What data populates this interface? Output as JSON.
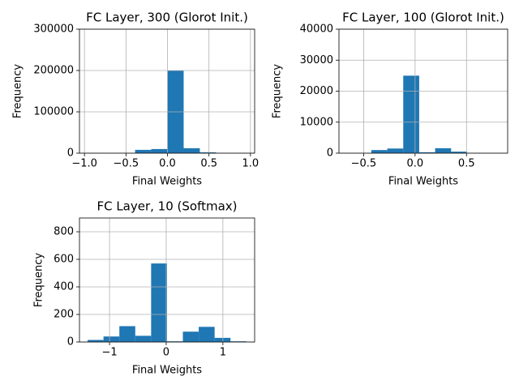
{
  "chart_data": [
    {
      "type": "histogram",
      "title": "FC Layer, 300 (Glorot Init.)",
      "xlabel": "Final Weights",
      "ylabel": "Frequency",
      "bins": [
        -0.975,
        -0.78,
        -0.585,
        -0.39,
        -0.195,
        0,
        0.195,
        0.39,
        0.585,
        0.78,
        0.975
      ],
      "values": [
        50,
        100,
        300,
        8000,
        10000,
        200000,
        12000,
        2000,
        100,
        50
      ],
      "color": "#1f77b4",
      "grid": true,
      "xlim": [
        -1.06,
        1.05
      ],
      "xticks": [
        {
          "value": -1,
          "label": "−1.0"
        },
        {
          "value": -0.5,
          "label": "−0.5"
        },
        {
          "value": 0,
          "label": "0.0"
        },
        {
          "value": 0.5,
          "label": "0.5"
        },
        {
          "value": 1,
          "label": "1.0"
        }
      ],
      "ylim": [
        0,
        300000
      ],
      "yticks": [
        0,
        100000,
        200000,
        300000
      ]
    },
    {
      "type": "histogram",
      "title": "FC Layer, 100 (Glorot Init.)",
      "xlabel": "Final Weights",
      "ylabel": "Frequency",
      "bins": [
        -0.735,
        -0.58,
        -0.425,
        -0.27,
        -0.115,
        0.04,
        0.195,
        0.35,
        0.505,
        0.66,
        0.815
      ],
      "values": [
        20,
        50,
        1000,
        1500,
        25000,
        300,
        1600,
        500,
        30,
        10
      ],
      "color": "#1f77b4",
      "grid": true,
      "xlim": [
        -0.74,
        0.9
      ],
      "xticks": [
        {
          "value": -0.5,
          "label": "−0.5"
        },
        {
          "value": 0,
          "label": "0.0"
        },
        {
          "value": 0.5,
          "label": "0.5"
        }
      ],
      "ylim": [
        0,
        40000
      ],
      "yticks": [
        0,
        10000,
        20000,
        30000,
        40000
      ]
    },
    {
      "type": "histogram",
      "title": "FC Layer, 10 (Softmax)",
      "xlabel": "Final Weights",
      "ylabel": "Frequency",
      "bins": [
        -1.386,
        -1.106,
        -0.826,
        -0.546,
        -0.266,
        0.014,
        0.294,
        0.574,
        0.854,
        1.134,
        1.414
      ],
      "values": [
        15,
        40,
        115,
        45,
        570,
        5,
        75,
        110,
        30,
        5
      ],
      "color": "#1f77b4",
      "grid": true,
      "xlim": [
        -1.53,
        1.56
      ],
      "xticks": [
        {
          "value": -1,
          "label": "−1"
        },
        0,
        1
      ],
      "ylim": [
        0,
        900
      ],
      "yticks": [
        0,
        200,
        400,
        600,
        800
      ]
    }
  ]
}
